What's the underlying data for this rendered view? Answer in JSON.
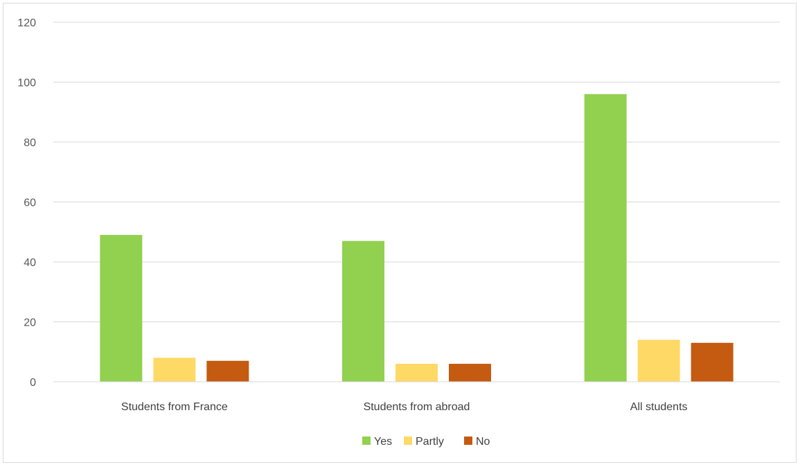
{
  "chart_data": {
    "type": "bar",
    "categories": [
      "Students from France",
      "Students from abroad",
      "All students"
    ],
    "series": [
      {
        "name": "Yes",
        "color": "#92d050",
        "values": [
          49,
          47,
          96
        ]
      },
      {
        "name": "Partly",
        "color": "#ffd966",
        "values": [
          8,
          6,
          14
        ]
      },
      {
        "name": "No",
        "color": "#c55a11",
        "values": [
          7,
          6,
          13
        ]
      }
    ],
    "yticks": [
      "0",
      "20",
      "40",
      "60",
      "80",
      "100",
      "120"
    ],
    "ylim": [
      0,
      120
    ],
    "title": "",
    "xlabel": "",
    "ylabel": "",
    "grid": true,
    "legend_position": "bottom"
  }
}
